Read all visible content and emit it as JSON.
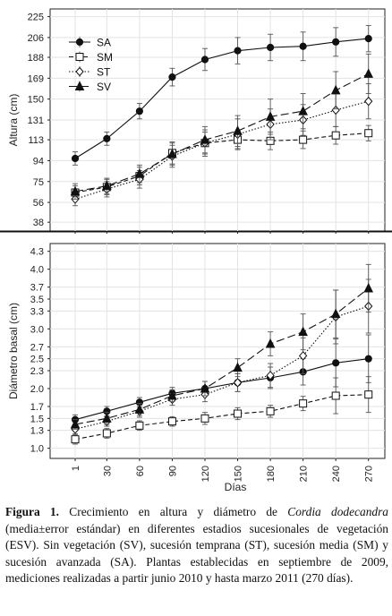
{
  "caption": {
    "label": "Figura 1.",
    "text_before": " Crecimiento en altura y diámetro de ",
    "species": "Cordia dodecandra",
    "text_after": " (media±error estándar) en diferentes estadios sucesionales de vegetación (ESV). Sin vegetación (SV), sucesión temprana (ST), sucesión media (SM) y sucesión avanzada (SA). Plantas establecidas en septiembre de 2009, mediciones realizadas a partir junio 2010 y hasta marzo 2011 (270 días)."
  },
  "chart_data": [
    {
      "type": "line",
      "panel": "top",
      "ylabel": "Altura (cm)",
      "xlabel": "",
      "yticks": [
        38,
        56,
        75,
        94,
        113,
        131,
        150,
        169,
        188,
        206,
        225
      ],
      "ylim": [
        30,
        232
      ],
      "xlim": [
        -22,
        285
      ],
      "legend_position": "top-left",
      "series": [
        {
          "name": "SA",
          "marker": "circle",
          "dash": "solid",
          "x": [
            1,
            30,
            60,
            90,
            120,
            150,
            180,
            210,
            240,
            270
          ],
          "y": [
            96,
            114,
            139,
            170,
            186,
            194,
            197,
            198,
            202,
            205
          ],
          "err": [
            6,
            6,
            7,
            8,
            10,
            12,
            12,
            13,
            13,
            12
          ]
        },
        {
          "name": "SM",
          "marker": "square",
          "dash": "short",
          "x": [
            1,
            30,
            60,
            90,
            120,
            150,
            180,
            210,
            240,
            270
          ],
          "y": [
            65,
            70,
            80,
            101,
            110,
            113,
            112,
            113,
            117,
            119
          ],
          "err": [
            6,
            7,
            8,
            10,
            10,
            8,
            8,
            8,
            8,
            7
          ]
        },
        {
          "name": "ST",
          "marker": "diamond",
          "dash": "dotted",
          "x": [
            1,
            30,
            60,
            90,
            120,
            150,
            180,
            210,
            240,
            270
          ],
          "y": [
            59,
            68,
            77,
            98,
            110,
            118,
            127,
            131,
            140,
            148
          ],
          "err": [
            6,
            7,
            8,
            10,
            12,
            14,
            14,
            14,
            15,
            16
          ]
        },
        {
          "name": "SV",
          "marker": "triangle",
          "dash": "long",
          "x": [
            1,
            30,
            60,
            90,
            120,
            150,
            180,
            210,
            240,
            270
          ],
          "y": [
            66,
            71,
            82,
            100,
            113,
            121,
            134,
            139,
            158,
            173
          ],
          "err": [
            7,
            7,
            8,
            10,
            12,
            14,
            16,
            16,
            17,
            18
          ]
        }
      ]
    },
    {
      "type": "line",
      "panel": "bottom",
      "ylabel": "Diámetro basal (cm)",
      "xlabel": "Días",
      "xticks": [
        "1",
        "30",
        "60",
        "90",
        "120",
        "150",
        "180",
        "210",
        "240",
        "270"
      ],
      "yticks": [
        "1.0",
        "1.3",
        "1.5",
        "1.7",
        "2.0",
        "2.3",
        "2.5",
        "2.7",
        "3.0",
        "3.3",
        "3.5",
        "3.7",
        "4.0",
        "4.3"
      ],
      "ylim": [
        0.83,
        4.43
      ],
      "xlim": [
        -22,
        285
      ],
      "series": [
        {
          "name": "SA",
          "marker": "circle",
          "dash": "solid",
          "x": [
            1,
            30,
            60,
            90,
            120,
            150,
            180,
            210,
            240,
            270
          ],
          "y": [
            1.48,
            1.62,
            1.77,
            1.92,
            2.0,
            2.1,
            2.18,
            2.28,
            2.43,
            2.5
          ],
          "err": [
            0.08,
            0.08,
            0.08,
            0.1,
            0.12,
            0.15,
            0.18,
            0.22,
            0.4,
            0.4
          ]
        },
        {
          "name": "SM",
          "marker": "square",
          "dash": "short",
          "x": [
            1,
            30,
            60,
            90,
            120,
            150,
            180,
            210,
            240,
            270
          ],
          "y": [
            1.15,
            1.25,
            1.38,
            1.45,
            1.5,
            1.58,
            1.62,
            1.75,
            1.88,
            1.9
          ],
          "err": [
            0.08,
            0.08,
            0.08,
            0.08,
            0.1,
            0.1,
            0.1,
            0.12,
            0.3,
            0.3
          ]
        },
        {
          "name": "ST",
          "marker": "diamond",
          "dash": "dotted",
          "x": [
            1,
            30,
            60,
            90,
            120,
            150,
            180,
            210,
            240,
            270
          ],
          "y": [
            1.32,
            1.45,
            1.62,
            1.82,
            1.9,
            2.1,
            2.22,
            2.55,
            3.2,
            3.38
          ],
          "err": [
            0.08,
            0.08,
            0.1,
            0.1,
            0.12,
            0.15,
            0.2,
            0.3,
            0.45,
            0.45
          ]
        },
        {
          "name": "SV",
          "marker": "triangle",
          "dash": "long",
          "x": [
            1,
            30,
            60,
            90,
            120,
            150,
            180,
            210,
            240,
            270
          ],
          "y": [
            1.4,
            1.5,
            1.65,
            1.88,
            2.0,
            2.35,
            2.75,
            2.95,
            3.25,
            3.68
          ],
          "err": [
            0.08,
            0.1,
            0.1,
            0.1,
            0.12,
            0.15,
            0.2,
            0.3,
            0.4,
            0.4
          ]
        }
      ]
    }
  ]
}
